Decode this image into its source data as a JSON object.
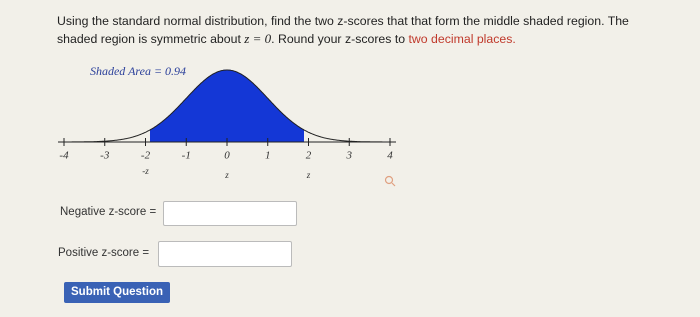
{
  "question": {
    "line1": "Using the standard normal distribution, find the two z-scores that that form the middle shaded region. The",
    "line2_start": "shaded region is symmetric about ",
    "math": "z = 0",
    "line2_middle": ". Round your z-scores to ",
    "highlight": "two decimal places."
  },
  "graph": {
    "shaded_label": "Shaded Area = 0.94",
    "ticks": [
      -4,
      -3,
      -2,
      -1,
      0,
      1,
      2,
      3,
      4
    ],
    "z_labels": [
      "-z",
      "z",
      "z"
    ]
  },
  "form": {
    "negative_label": "Negative z-score =",
    "positive_label": "Positive z-score =",
    "submit": "Submit Question"
  }
}
